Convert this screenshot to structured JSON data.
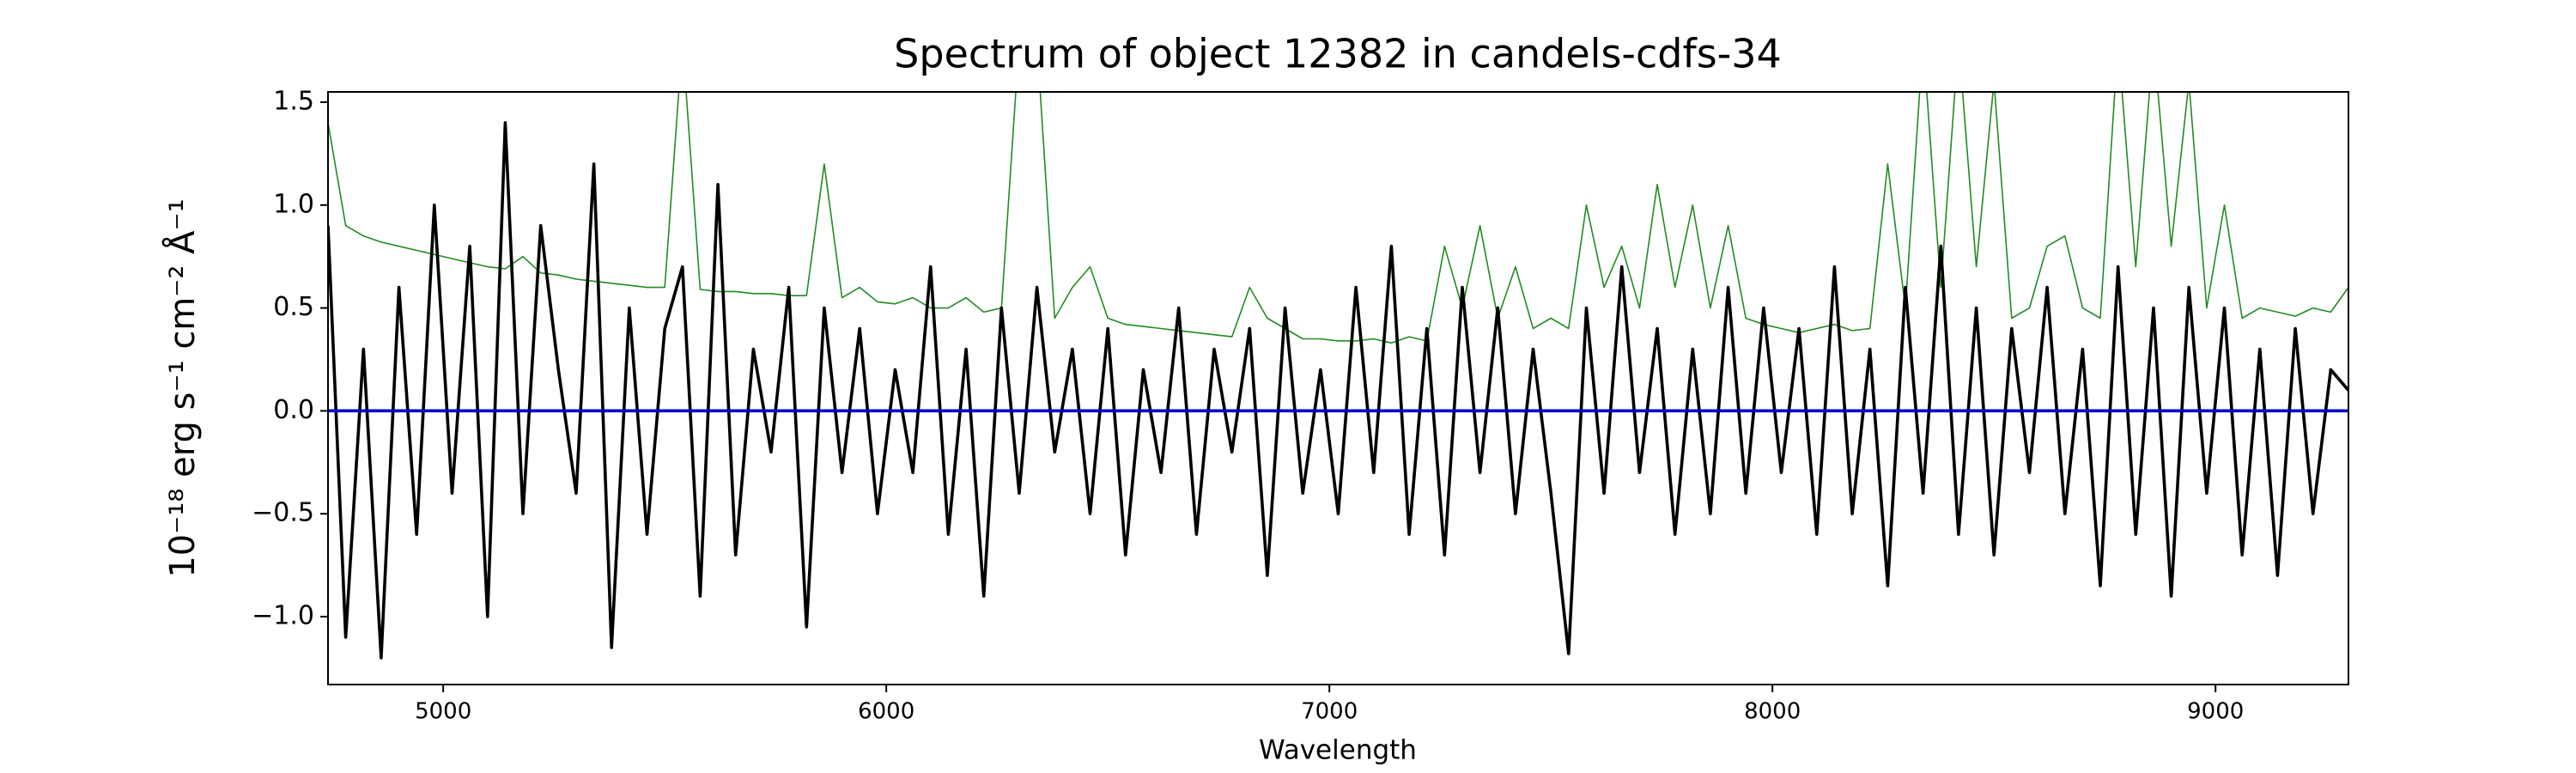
{
  "chart_data": {
    "type": "line",
    "title": "Spectrum of object 12382 in candels-cdfs-34",
    "xlabel": "Wavelength",
    "ylabel": "10⁻¹⁸ erg s⁻¹ cm⁻² Å⁻¹",
    "x": [
      4740,
      4780,
      4820,
      4860,
      4900,
      4940,
      4980,
      5020,
      5060,
      5100,
      5140,
      5180,
      5220,
      5260,
      5300,
      5340,
      5380,
      5420,
      5460,
      5500,
      5540,
      5580,
      5620,
      5660,
      5700,
      5740,
      5780,
      5820,
      5860,
      5900,
      5940,
      5980,
      6020,
      6060,
      6100,
      6140,
      6180,
      6220,
      6260,
      6300,
      6340,
      6380,
      6420,
      6460,
      6500,
      6540,
      6580,
      6620,
      6660,
      6700,
      6740,
      6780,
      6820,
      6860,
      6900,
      6940,
      6980,
      7020,
      7060,
      7100,
      7140,
      7180,
      7220,
      7260,
      7300,
      7340,
      7380,
      7420,
      7460,
      7500,
      7540,
      7580,
      7620,
      7660,
      7700,
      7740,
      7780,
      7820,
      7860,
      7900,
      7940,
      7980,
      8020,
      8060,
      8100,
      8140,
      8180,
      8220,
      8260,
      8300,
      8340,
      8380,
      8420,
      8460,
      8500,
      8540,
      8580,
      8620,
      8660,
      8700,
      8740,
      8780,
      8820,
      8860,
      8900,
      8940,
      8980,
      9020,
      9060,
      9100,
      9140,
      9180,
      9220,
      9260,
      9300
    ],
    "series": [
      {
        "color": "#228b22",
        "values": [
          1.4,
          0.9,
          0.85,
          0.82,
          0.8,
          0.78,
          0.76,
          0.74,
          0.72,
          0.7,
          0.69,
          0.75,
          0.67,
          0.66,
          0.64,
          0.63,
          0.62,
          0.61,
          0.6,
          0.6,
          1.8,
          0.59,
          0.58,
          0.58,
          0.57,
          0.57,
          0.56,
          0.56,
          1.2,
          0.55,
          0.6,
          0.53,
          0.52,
          0.55,
          0.5,
          0.5,
          0.55,
          0.48,
          0.5,
          1.8,
          1.8,
          0.45,
          0.6,
          0.7,
          0.45,
          0.42,
          0.41,
          0.4,
          0.39,
          0.38,
          0.37,
          0.36,
          0.6,
          0.45,
          0.4,
          0.35,
          0.35,
          0.34,
          0.34,
          0.35,
          0.33,
          0.36,
          0.34,
          0.8,
          0.5,
          0.9,
          0.45,
          0.7,
          0.4,
          0.45,
          0.4,
          1.0,
          0.6,
          0.8,
          0.5,
          1.1,
          0.6,
          1.0,
          0.5,
          0.9,
          0.45,
          0.42,
          0.4,
          0.38,
          0.4,
          0.42,
          0.39,
          0.4,
          1.2,
          0.5,
          1.8,
          0.6,
          1.8,
          0.7,
          1.6,
          0.45,
          0.5,
          0.8,
          0.85,
          0.5,
          0.45,
          1.8,
          0.7,
          1.8,
          0.8,
          1.6,
          0.5,
          1.0,
          0.45,
          0.5,
          0.48,
          0.46,
          0.5,
          0.48,
          0.6
        ]
      },
      {
        "color": "#000000",
        "values": [
          0.9,
          -1.1,
          0.3,
          -1.2,
          0.6,
          -0.6,
          1.0,
          -0.4,
          0.8,
          -1.0,
          1.4,
          -0.5,
          0.9,
          0.2,
          -0.4,
          1.2,
          -1.15,
          0.5,
          -0.6,
          0.4,
          0.7,
          -0.9,
          1.1,
          -0.7,
          0.3,
          -0.2,
          0.6,
          -1.05,
          0.5,
          -0.3,
          0.4,
          -0.5,
          0.2,
          -0.3,
          0.7,
          -0.6,
          0.3,
          -0.9,
          0.5,
          -0.4,
          0.6,
          -0.2,
          0.3,
          -0.5,
          0.4,
          -0.7,
          0.2,
          -0.3,
          0.5,
          -0.6,
          0.3,
          -0.2,
          0.4,
          -0.8,
          0.5,
          -0.4,
          0.2,
          -0.5,
          0.6,
          -0.3,
          0.8,
          -0.6,
          0.4,
          -0.7,
          0.6,
          -0.3,
          0.5,
          -0.5,
          0.3,
          -0.4,
          -1.18,
          0.5,
          -0.4,
          0.7,
          -0.3,
          0.4,
          -0.6,
          0.3,
          -0.5,
          0.6,
          -0.4,
          0.5,
          -0.3,
          0.4,
          -0.6,
          0.7,
          -0.5,
          0.3,
          -0.85,
          0.6,
          -0.4,
          0.8,
          -0.6,
          0.5,
          -0.7,
          0.4,
          -0.3,
          0.6,
          -0.5,
          0.3,
          -0.85,
          0.7,
          -0.6,
          0.5,
          -0.9,
          0.6,
          -0.4,
          0.5,
          -0.7,
          0.3,
          -0.8,
          0.4,
          -0.5,
          0.2,
          0.1
        ]
      }
    ],
    "hline": {
      "value": 0,
      "color": "#0000cc"
    },
    "xlim": [
      4740,
      9300
    ],
    "xticks": [
      5000,
      6000,
      7000,
      8000,
      9000
    ],
    "ylim": [
      -1.33,
      1.55
    ],
    "yticks": [
      {
        "value": -1.0,
        "label": "−1.0"
      },
      {
        "value": -0.5,
        "label": "−0.5"
      },
      {
        "value": 0.0,
        "label": "0.0"
      },
      0.5,
      {
        "value": 1.0,
        "label": "1.0"
      },
      1.5
    ]
  }
}
